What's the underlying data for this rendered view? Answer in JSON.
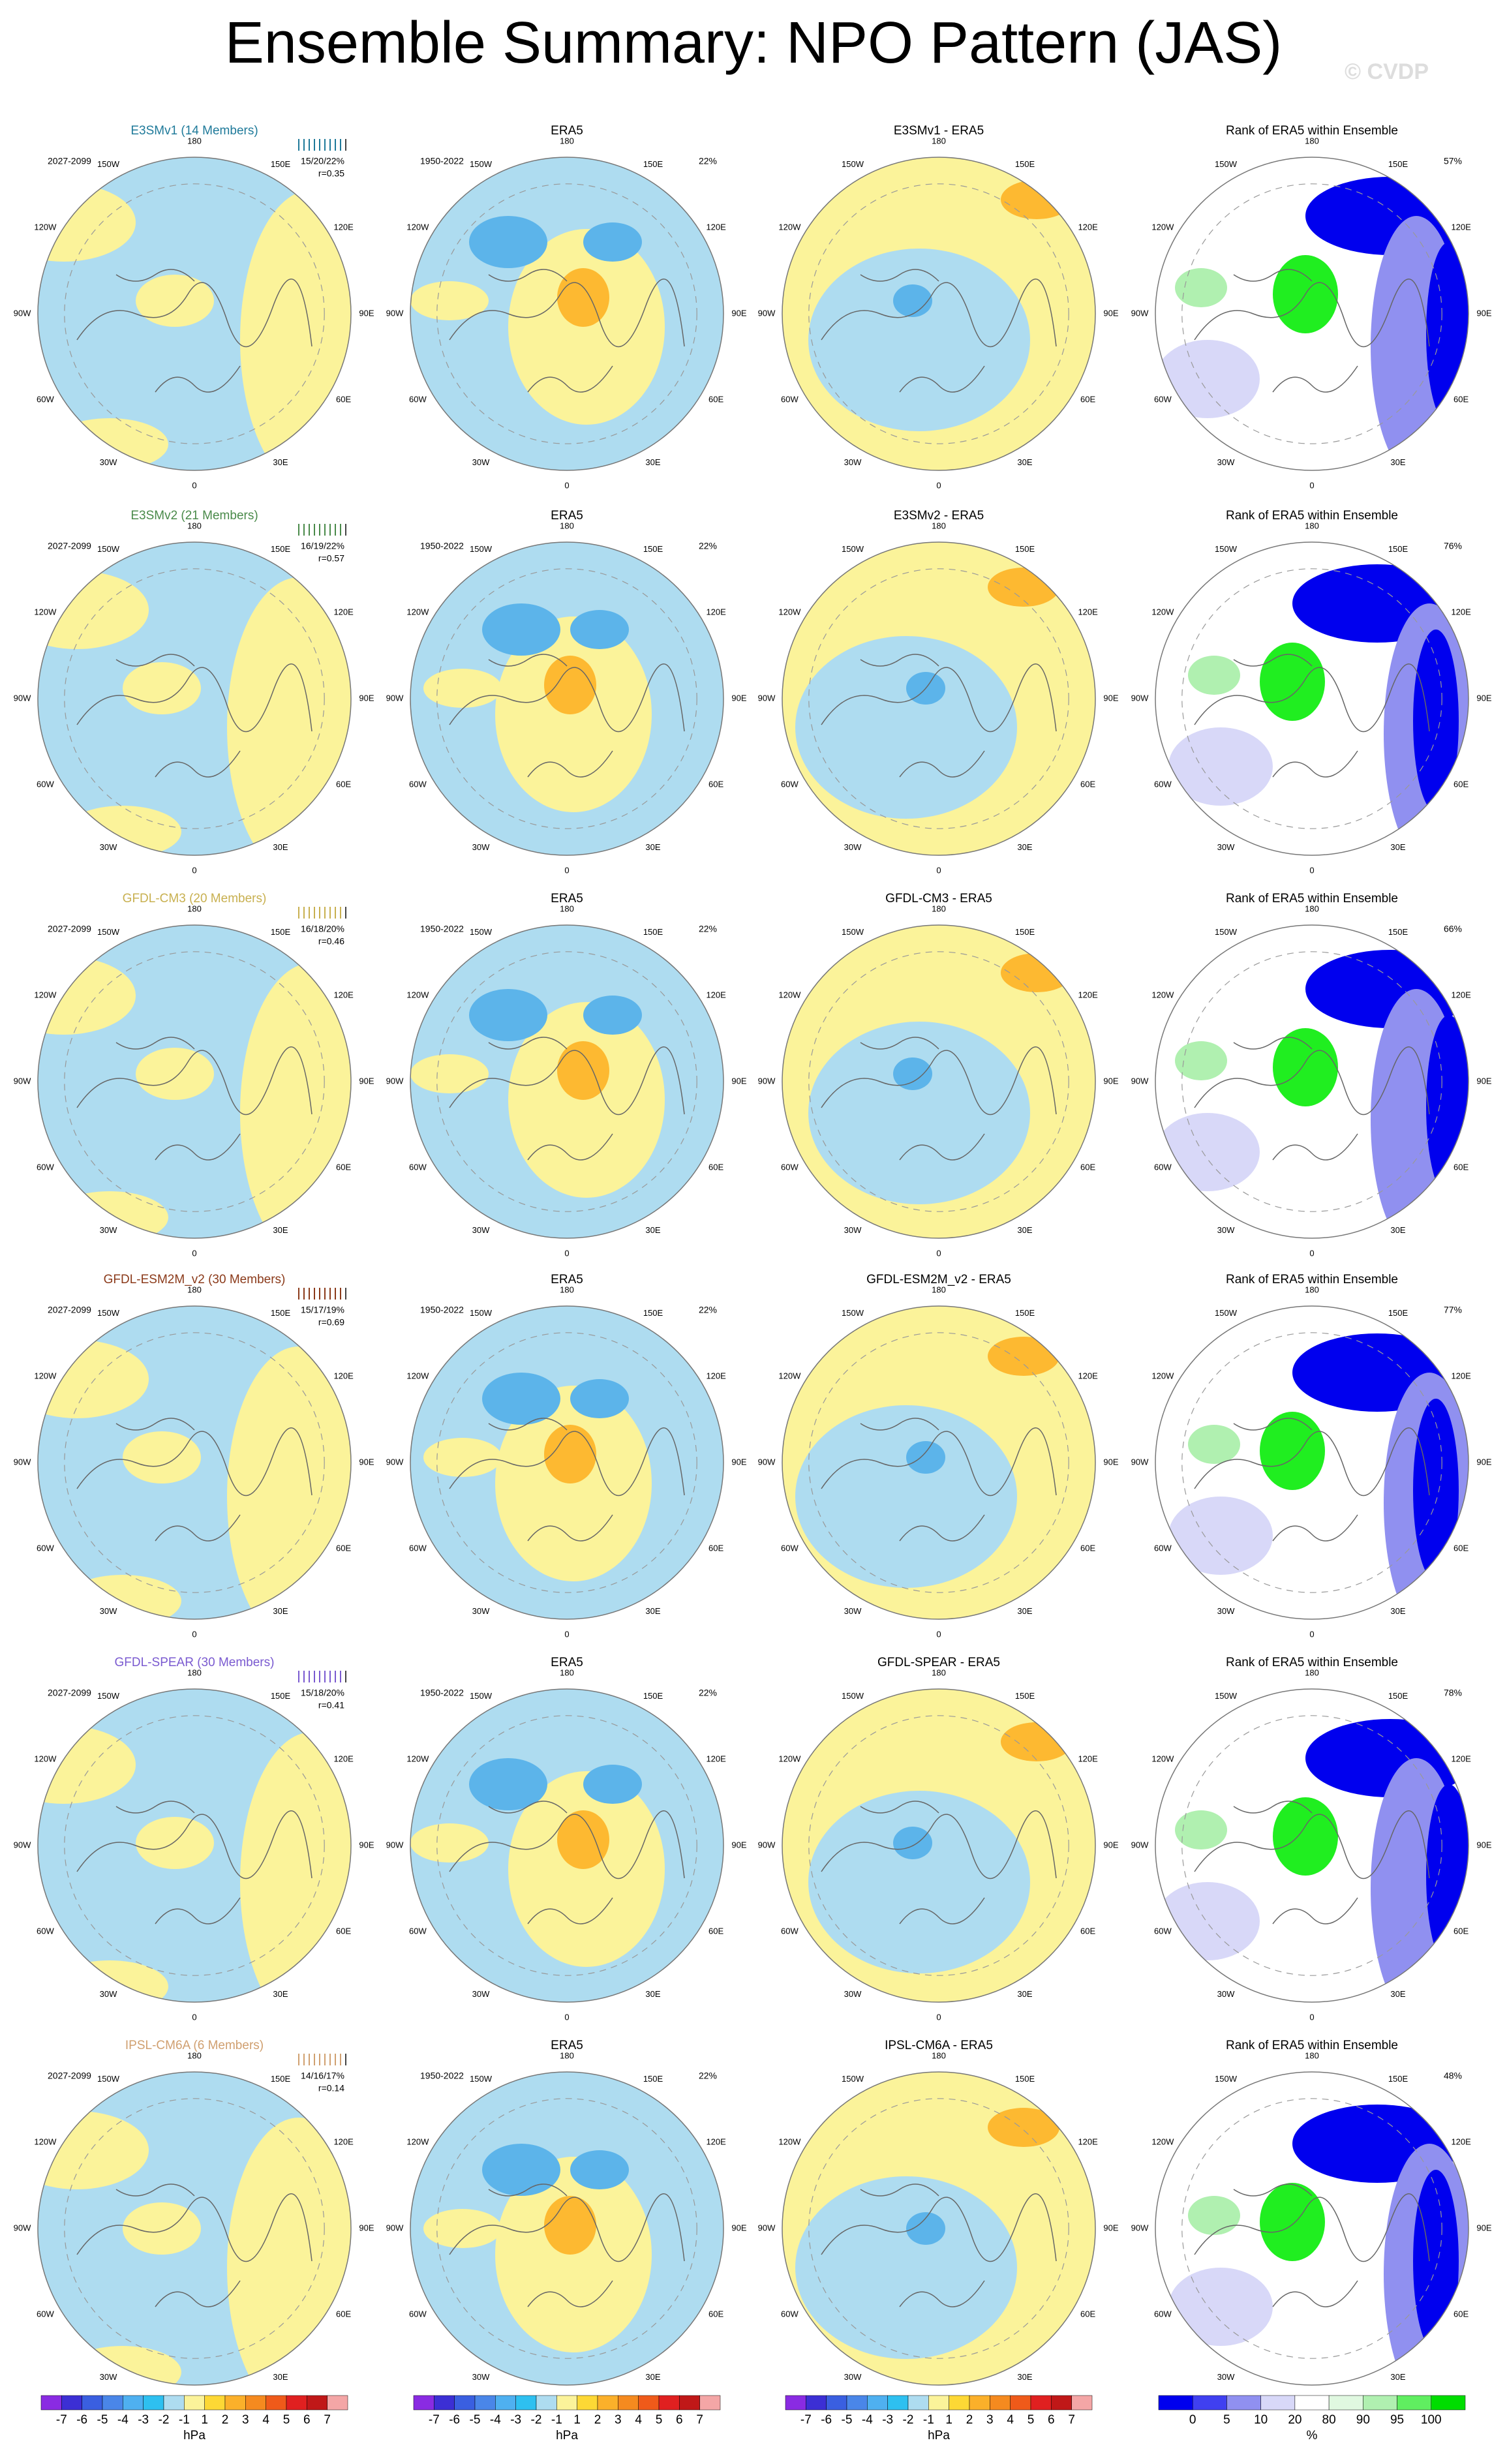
{
  "title": "Ensemble Summary: NPO Pattern (JAS)",
  "watermark": "© CVDP",
  "rows": [
    {
      "model_title": "E3SMv1 (14 Members)",
      "model_color": "#1f7a9a",
      "model_period": "2027-2099",
      "model_stats": "15/20/22%",
      "model_r": "r=0.35",
      "obs_title": "ERA5",
      "obs_period": "1950-2022",
      "obs_pct": "22%",
      "diff_title": "E3SMv1 - ERA5",
      "rank_title": "Rank of ERA5 within Ensemble",
      "rank_pct": "57%"
    },
    {
      "model_title": "E3SMv2 (21 Members)",
      "model_color": "#4a8a4a",
      "model_period": "2027-2099",
      "model_stats": "16/19/22%",
      "model_r": "r=0.57",
      "obs_title": "ERA5",
      "obs_period": "1950-2022",
      "obs_pct": "22%",
      "diff_title": "E3SMv2 - ERA5",
      "rank_title": "Rank of ERA5 within Ensemble",
      "rank_pct": "76%"
    },
    {
      "model_title": "GFDL-CM3 (20 Members)",
      "model_color": "#c8b050",
      "model_period": "2027-2099",
      "model_stats": "16/18/20%",
      "model_r": "r=0.46",
      "obs_title": "ERA5",
      "obs_period": "1950-2022",
      "obs_pct": "22%",
      "diff_title": "GFDL-CM3 - ERA5",
      "rank_title": "Rank of ERA5 within Ensemble",
      "rank_pct": "66%"
    },
    {
      "model_title": "GFDL-ESM2M_v2 (30 Members)",
      "model_color": "#8b3a1a",
      "model_period": "2027-2099",
      "model_stats": "15/17/19%",
      "model_r": "r=0.69",
      "obs_title": "ERA5",
      "obs_period": "1950-2022",
      "obs_pct": "22%",
      "diff_title": "GFDL-ESM2M_v2 - ERA5",
      "rank_title": "Rank of ERA5 within Ensemble",
      "rank_pct": "77%"
    },
    {
      "model_title": "GFDL-SPEAR (30 Members)",
      "model_color": "#7a5ad0",
      "model_period": "2027-2099",
      "model_stats": "15/18/20%",
      "model_r": "r=0.41",
      "obs_title": "ERA5",
      "obs_period": "1950-2022",
      "obs_pct": "22%",
      "diff_title": "GFDL-SPEAR - ERA5",
      "rank_title": "Rank of ERA5 within Ensemble",
      "rank_pct": "78%"
    },
    {
      "model_title": "IPSL-CM6A (6 Members)",
      "model_color": "#d0a070",
      "model_period": "2027-2099",
      "model_stats": "14/16/17%",
      "model_r": "r=0.14",
      "obs_title": "ERA5",
      "obs_period": "1950-2022",
      "obs_pct": "22%",
      "diff_title": "IPSL-CM6A - ERA5",
      "rank_title": "Rank of ERA5 within Ensemble",
      "rank_pct": "48%"
    }
  ],
  "lon_labels": [
    "180",
    "150E",
    "120E",
    "90E",
    "60E",
    "30E",
    "0",
    "30W",
    "60W",
    "90W",
    "120W",
    "150W"
  ],
  "hpa_colorbar": {
    "colors": [
      "#8a2be2",
      "#3c2fd4",
      "#3a5fe0",
      "#4a86e8",
      "#4fb0f0",
      "#2ec0f0",
      "#aedcf0",
      "#fbf39a",
      "#fdd835",
      "#fbb02a",
      "#f58a1f",
      "#ef5a1a",
      "#e02020",
      "#c01818",
      "#f4a6a6"
    ],
    "labels": [
      -7,
      -6,
      -5,
      -4,
      -3,
      -2,
      -1,
      1,
      2,
      3,
      4,
      5,
      6,
      7
    ],
    "unit": "hPa"
  },
  "rank_colorbar": {
    "colors": [
      "#0000ee",
      "#4040f0",
      "#9090f0",
      "#d8d8f8",
      "#ffffff",
      "#e0f8e0",
      "#b0f0b0",
      "#60ee60",
      "#00dd00"
    ],
    "labels": [
      0,
      5,
      10,
      20,
      80,
      90,
      95,
      100
    ],
    "unit": "%"
  }
}
